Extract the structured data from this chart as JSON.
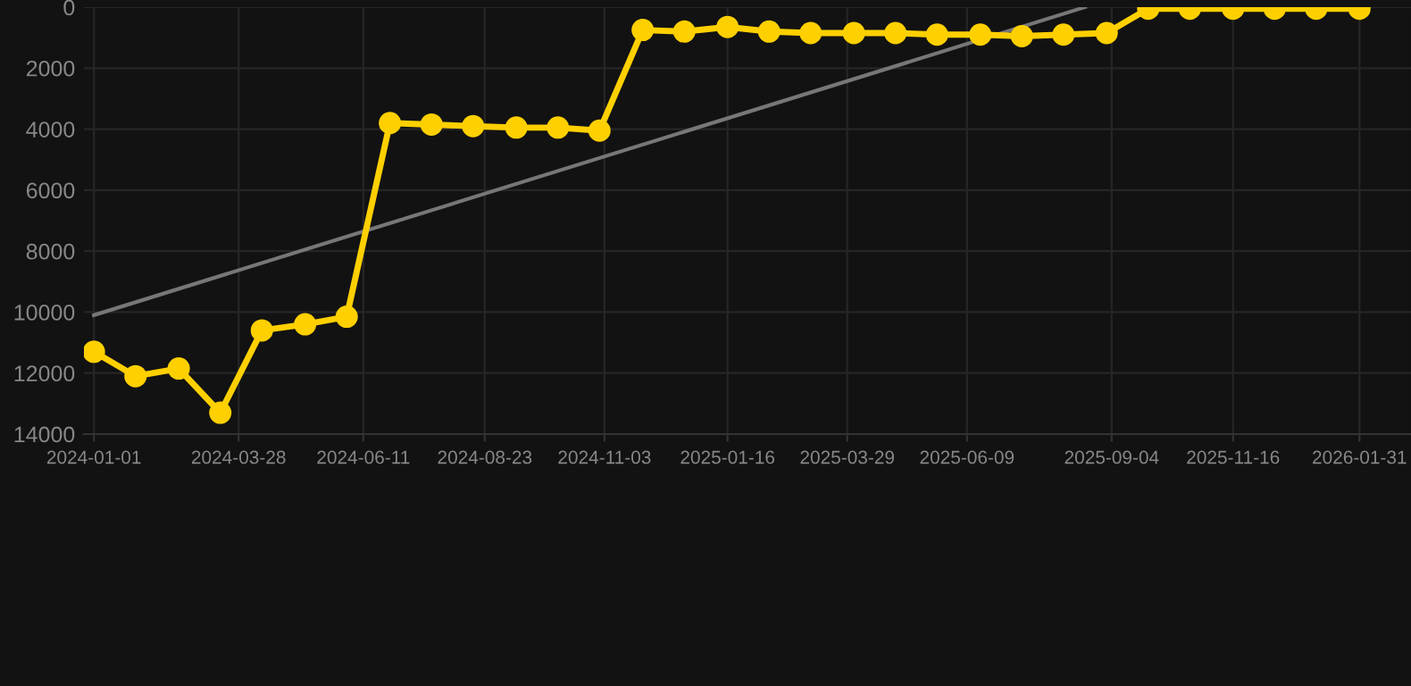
{
  "chart_data": {
    "type": "line",
    "xlim": [
      "2023-12-26",
      "2026-03-03"
    ],
    "ylim": [
      14000,
      0
    ],
    "yticks": [
      0,
      2000,
      4000,
      6000,
      8000,
      10000,
      12000,
      14000
    ],
    "xticks": [
      {
        "value": "2024-01-01",
        "label": "2024-01-01"
      },
      {
        "value": "2024-03-28",
        "label": "2024-03-28"
      },
      {
        "value": "2024-06-11",
        "label": "2024-06-11"
      },
      {
        "value": "2024-08-23",
        "label": "2024-08-23"
      },
      {
        "value": "2024-11-03",
        "label": "2024-11-03"
      },
      {
        "value": "2025-01-16",
        "label": "2025-01-16"
      },
      {
        "value": "2025-03-29",
        "label": "2025-03-29"
      },
      {
        "value": "2025-06-09",
        "label": "2025-06-09"
      },
      {
        "value": "2025-09-04",
        "label": "2025-09-04"
      },
      {
        "value": "2025-11-16",
        "label": "2025-11-16"
      },
      {
        "value": "2026-01-31",
        "label": "2026-01-31"
      }
    ],
    "grid": true,
    "marker": "circle",
    "line_style": "solid",
    "series": [
      {
        "color": "#ffd000",
        "x": [
          "2024-01-01",
          "2024-01-26",
          "2024-02-21",
          "2024-03-17",
          "2024-04-11",
          "2024-05-07",
          "2024-06-01",
          "2024-06-27",
          "2024-07-22",
          "2024-08-16",
          "2024-09-11",
          "2024-10-06",
          "2024-10-31",
          "2024-11-26",
          "2024-12-21",
          "2025-01-16",
          "2025-02-10",
          "2025-03-07",
          "2025-04-02",
          "2025-04-27",
          "2025-05-22",
          "2025-06-17",
          "2025-07-12",
          "2025-08-06",
          "2025-09-01",
          "2025-09-26",
          "2025-10-21",
          "2025-11-16",
          "2025-12-11",
          "2026-01-05",
          "2026-01-31"
        ],
        "values": [
          11300,
          12100,
          11850,
          13300,
          10600,
          10400,
          10150,
          3800,
          3850,
          3900,
          3950,
          3950,
          4050,
          750,
          800,
          650,
          800,
          850,
          850,
          850,
          900,
          900,
          950,
          900,
          850,
          50,
          50,
          50,
          50,
          50,
          50
        ]
      },
      {
        "type": "line",
        "color": "#777777",
        "marker": "none",
        "x": [
          "2024-01-01",
          "2025-08-19"
        ],
        "values": [
          10100,
          0
        ]
      }
    ]
  }
}
